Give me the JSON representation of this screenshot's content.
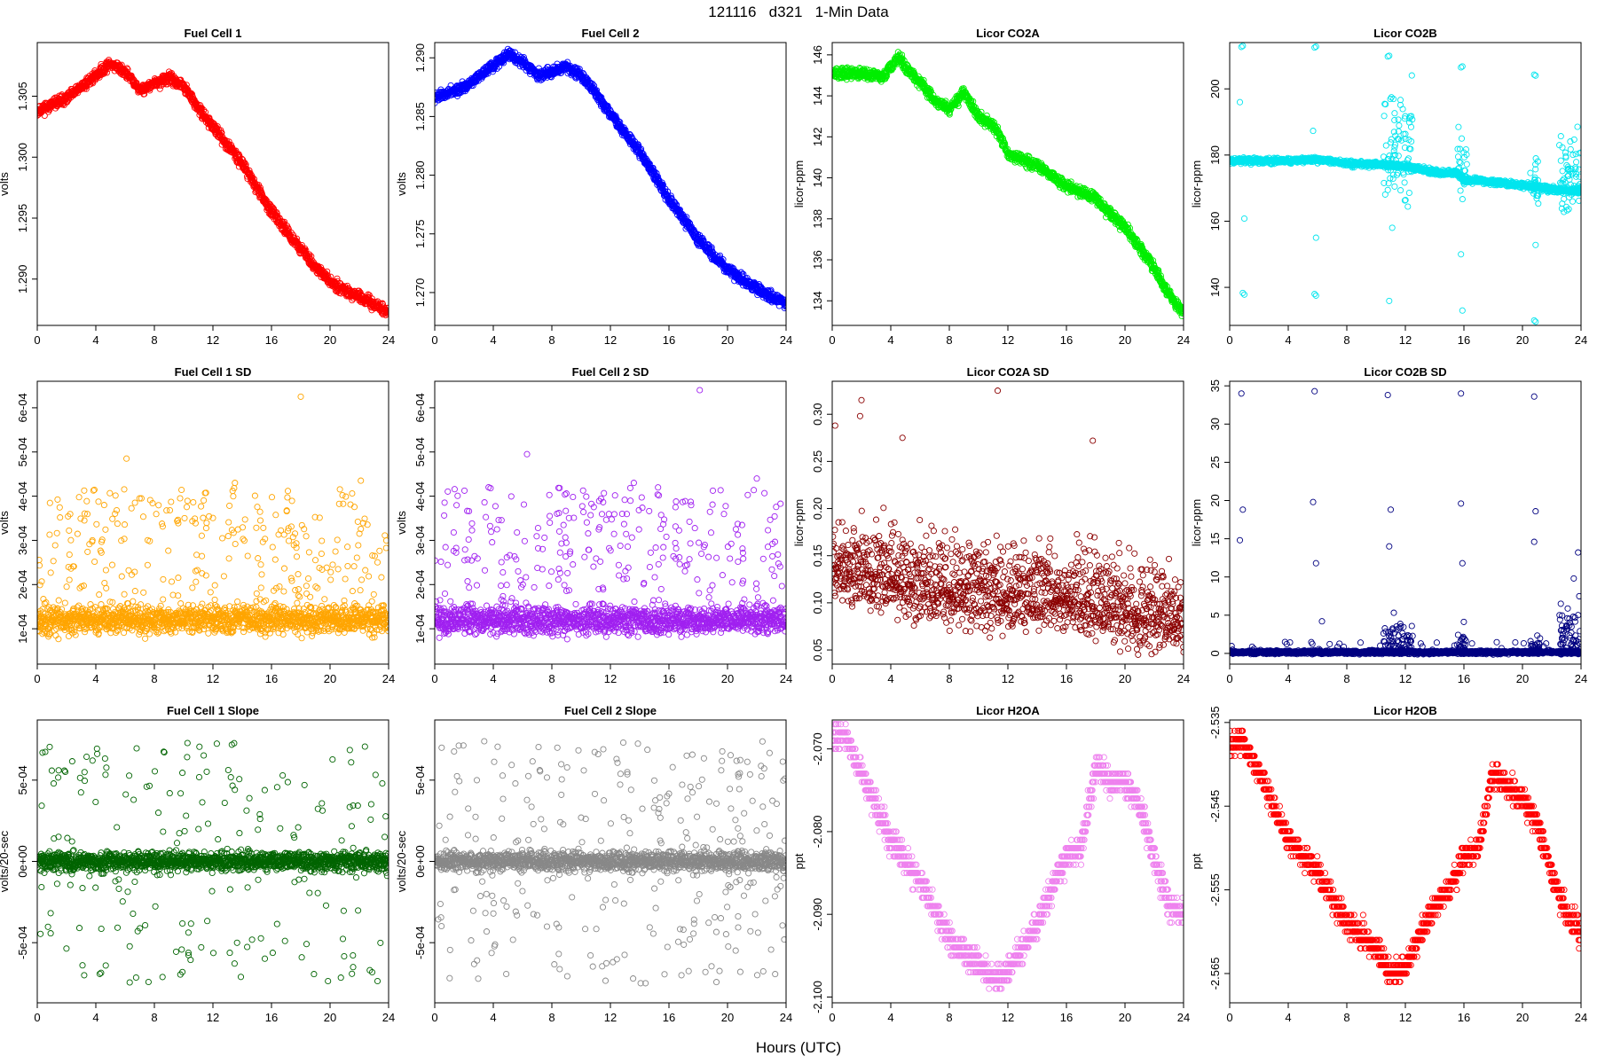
{
  "page": {
    "title": "121116   d321   1-Min Data",
    "xlabel": "Hours (UTC)"
  },
  "chart_data": [
    {
      "title": "Fuel Cell 1",
      "ylabel": "volts",
      "type": "scatter",
      "color": "#ff0000",
      "shape": "trend",
      "xlim": [
        0,
        24
      ],
      "ylim": [
        1.2862,
        1.3094
      ],
      "xticks": [
        0,
        4,
        8,
        12,
        16,
        20,
        24
      ],
      "yticks": [
        1.29,
        1.295,
        1.3,
        1.305
      ],
      "yticklabels": [
        "1.290",
        "1.295",
        "1.300",
        "1.305"
      ],
      "trend": [
        [
          0,
          1.3038
        ],
        [
          2,
          1.3048
        ],
        [
          4,
          1.3067
        ],
        [
          5,
          1.3077
        ],
        [
          6,
          1.307
        ],
        [
          7,
          1.3055
        ],
        [
          8,
          1.306
        ],
        [
          9,
          1.3065
        ],
        [
          10,
          1.3058
        ],
        [
          11,
          1.304
        ],
        [
          12,
          1.3025
        ],
        [
          14,
          1.2995
        ],
        [
          16,
          1.2955
        ],
        [
          18,
          1.2925
        ],
        [
          19,
          1.291
        ],
        [
          20,
          1.2898
        ],
        [
          22,
          1.2885
        ],
        [
          24,
          1.2873
        ]
      ],
      "noise": 0.0003,
      "points_per_hour": 60,
      "seed": 11
    },
    {
      "title": "Fuel Cell 2",
      "ylabel": "volts",
      "type": "scatter",
      "color": "#0000ff",
      "shape": "trend",
      "xlim": [
        0,
        24
      ],
      "ylim": [
        1.2672,
        1.2913
      ],
      "xticks": [
        0,
        4,
        8,
        12,
        16,
        20,
        24
      ],
      "yticks": [
        1.27,
        1.275,
        1.28,
        1.285,
        1.29
      ],
      "yticklabels": [
        "1.270",
        "1.275",
        "1.280",
        "1.285",
        "1.290"
      ],
      "trend": [
        [
          0,
          1.2866
        ],
        [
          2,
          1.2875
        ],
        [
          4,
          1.2893
        ],
        [
          5,
          1.2903
        ],
        [
          6,
          1.2897
        ],
        [
          7,
          1.2885
        ],
        [
          8,
          1.2888
        ],
        [
          9,
          1.2893
        ],
        [
          10,
          1.2885
        ],
        [
          11,
          1.287
        ],
        [
          12,
          1.2852
        ],
        [
          14,
          1.282
        ],
        [
          16,
          1.278
        ],
        [
          18,
          1.2745
        ],
        [
          20,
          1.272
        ],
        [
          22,
          1.2703
        ],
        [
          24,
          1.269
        ]
      ],
      "noise": 0.0003,
      "points_per_hour": 60,
      "seed": 12
    },
    {
      "title": "Licor CO2A",
      "ylabel": "licor-ppm",
      "type": "scatter",
      "color": "#00ee00",
      "shape": "trend",
      "xlim": [
        0,
        24
      ],
      "ylim": [
        132.8,
        146.6
      ],
      "xticks": [
        0,
        4,
        8,
        12,
        16,
        20,
        24
      ],
      "yticks": [
        134,
        136,
        138,
        140,
        142,
        144,
        146
      ],
      "yticklabels": [
        "134",
        "136",
        "138",
        "140",
        "142",
        "144",
        "146"
      ],
      "trend": [
        [
          0,
          145.1
        ],
        [
          2,
          145.1
        ],
        [
          3.5,
          144.9
        ],
        [
          4.5,
          145.9
        ],
        [
          6,
          144.6
        ],
        [
          7,
          143.8
        ],
        [
          8,
          143.3
        ],
        [
          9,
          144.2
        ],
        [
          10,
          143.0
        ],
        [
          11,
          142.5
        ],
        [
          11.5,
          142.0
        ],
        [
          12,
          141.2
        ],
        [
          14,
          140.6
        ],
        [
          16,
          139.6
        ],
        [
          18,
          139.0
        ],
        [
          19,
          138.2
        ],
        [
          20,
          137.6
        ],
        [
          22,
          135.6
        ],
        [
          23,
          134.3
        ],
        [
          24,
          133.4
        ]
      ],
      "noise": 0.18,
      "points_per_hour": 60,
      "seed": 13
    },
    {
      "title": "Licor CO2B",
      "ylabel": "licor-ppm",
      "type": "scatter",
      "color": "#00e5ee",
      "shape": "trend",
      "xlim": [
        0,
        24
      ],
      "ylim": [
        128.5,
        214
      ],
      "xticks": [
        0,
        4,
        8,
        12,
        16,
        20,
        24
      ],
      "yticks": [
        140,
        160,
        180,
        200
      ],
      "yticklabels": [
        "140",
        "160",
        "180",
        "200"
      ],
      "trend": [
        [
          0,
          178.3
        ],
        [
          4,
          178.2
        ],
        [
          6,
          178.6
        ],
        [
          8,
          177.4
        ],
        [
          10,
          177.2
        ],
        [
          12,
          176.5
        ],
        [
          14.5,
          174.5
        ],
        [
          15.5,
          174.8
        ],
        [
          16,
          172.5
        ],
        [
          18,
          171.8
        ],
        [
          20,
          170.8
        ],
        [
          22,
          169.5
        ],
        [
          24,
          169.0
        ]
      ],
      "noise": 0.6,
      "points_per_hour": 60,
      "seed": 14,
      "outliers": [
        [
          0.8,
          212.7
        ],
        [
          0.9,
          213.0
        ],
        [
          0.7,
          196.0
        ],
        [
          1.0,
          160.8
        ],
        [
          0.9,
          138.3
        ],
        [
          1.0,
          137.8
        ],
        [
          5.8,
          212.5
        ],
        [
          5.9,
          212.8
        ],
        [
          5.7,
          187.3
        ],
        [
          5.9,
          155.0
        ],
        [
          5.8,
          138.0
        ],
        [
          5.9,
          137.5
        ],
        [
          10.8,
          209.8
        ],
        [
          10.9,
          210.0
        ],
        [
          11.1,
          158.0
        ],
        [
          10.9,
          135.9
        ],
        [
          15.8,
          206.5
        ],
        [
          15.9,
          206.8
        ],
        [
          15.8,
          150.0
        ],
        [
          15.9,
          133.0
        ],
        [
          20.8,
          204.3
        ],
        [
          20.9,
          204.0
        ],
        [
          20.9,
          152.8
        ],
        [
          20.8,
          130.0
        ],
        [
          20.9,
          129.6
        ]
      ],
      "bursts": [
        [
          10.5,
          12.5,
          16
        ],
        [
          15.5,
          16.2,
          8
        ],
        [
          20.5,
          21.2,
          6
        ],
        [
          22.5,
          24,
          12
        ]
      ]
    },
    {
      "title": "Fuel Cell 1 SD",
      "ylabel": "volts",
      "type": "scatter",
      "color": "#ffa500",
      "shape": "sd",
      "xlim": [
        0,
        24
      ],
      "ylim": [
        2e-05,
        0.00066
      ],
      "xticks": [
        0,
        4,
        8,
        12,
        16,
        20,
        24
      ],
      "yticks": [
        0.0001,
        0.0002,
        0.0003,
        0.0004,
        0.0005,
        0.0006
      ],
      "yticklabels": [
        "1e-04",
        "2e-04",
        "3e-04",
        "4e-04",
        "5e-04",
        "6e-04"
      ],
      "base": 0.00012,
      "noise": 2.2e-05,
      "spread": [
        0.00015,
        0.00042
      ],
      "spread_count": 270,
      "points_per_hour": 60,
      "seed": 21,
      "outliers": [
        [
          18.0,
          0.000625
        ],
        [
          6.1,
          0.000485
        ],
        [
          13.5,
          0.00043
        ],
        [
          22.1,
          0.000435
        ]
      ]
    },
    {
      "title": "Fuel Cell 2 SD",
      "ylabel": "volts",
      "type": "scatter",
      "color": "#a020f0",
      "shape": "sd",
      "xlim": [
        0,
        24
      ],
      "ylim": [
        2e-05,
        0.00066
      ],
      "xticks": [
        0,
        4,
        8,
        12,
        16,
        20,
        24
      ],
      "yticks": [
        0.0001,
        0.0002,
        0.0003,
        0.0004,
        0.0005,
        0.0006
      ],
      "yticklabels": [
        "1e-04",
        "2e-04",
        "3e-04",
        "4e-04",
        "5e-04",
        "6e-04"
      ],
      "base": 0.00012,
      "noise": 2.2e-05,
      "spread": [
        0.00015,
        0.00042
      ],
      "spread_count": 270,
      "points_per_hour": 60,
      "seed": 22,
      "outliers": [
        [
          18.1,
          0.00064
        ],
        [
          6.3,
          0.000495
        ],
        [
          13.6,
          0.00043
        ],
        [
          22.0,
          0.00044
        ]
      ]
    },
    {
      "title": "Licor CO2A SD",
      "ylabel": "licor-ppm",
      "type": "scatter",
      "color": "#8b0000",
      "shape": "sdwide",
      "xlim": [
        0,
        24
      ],
      "ylim": [
        0.035,
        0.335
      ],
      "xticks": [
        0,
        4,
        8,
        12,
        16,
        20,
        24
      ],
      "yticks": [
        0.05,
        0.1,
        0.15,
        0.2,
        0.25,
        0.3
      ],
      "yticklabels": [
        "0.05",
        "0.10",
        "0.15",
        "0.20",
        "0.25",
        "0.30"
      ],
      "trend": [
        [
          0,
          0.14
        ],
        [
          4,
          0.125
        ],
        [
          8,
          0.11
        ],
        [
          12,
          0.105
        ],
        [
          16,
          0.105
        ],
        [
          20,
          0.09
        ],
        [
          24,
          0.075
        ]
      ],
      "noise": 0.04,
      "points_per_hour": 60,
      "seed": 23,
      "outliers": [
        [
          11.3,
          0.325
        ],
        [
          2.0,
          0.315
        ],
        [
          1.9,
          0.298
        ],
        [
          17.8,
          0.272
        ],
        [
          0.2,
          0.288
        ],
        [
          4.8,
          0.275
        ]
      ]
    },
    {
      "title": "Licor CO2B SD",
      "ylabel": "licor-ppm",
      "type": "scatter",
      "color": "#000080",
      "shape": "sd",
      "xlim": [
        0,
        24
      ],
      "ylim": [
        -1.4,
        35.6
      ],
      "xticks": [
        0,
        4,
        8,
        12,
        16,
        20,
        24
      ],
      "yticks": [
        0,
        5,
        10,
        15,
        20,
        25,
        30,
        35
      ],
      "yticklabels": [
        "0",
        "5",
        "10",
        "15",
        "20",
        "25",
        "30",
        "35"
      ],
      "base": 0.15,
      "noise": 0.15,
      "spread": [
        0.3,
        1.5
      ],
      "spread_count": 40,
      "points_per_hour": 60,
      "seed": 24,
      "bursts": [
        [
          10.5,
          12.5,
          5.0
        ],
        [
          15.5,
          16.2,
          4.0
        ],
        [
          20.5,
          21.2,
          2.5
        ],
        [
          22.5,
          24,
          9.0
        ]
      ],
      "outliers": [
        [
          0.8,
          34.0
        ],
        [
          0.9,
          18.8
        ],
        [
          0.7,
          14.8
        ],
        [
          5.8,
          34.3
        ],
        [
          5.7,
          19.8
        ],
        [
          5.9,
          11.8
        ],
        [
          6.3,
          4.2
        ],
        [
          10.8,
          33.8
        ],
        [
          11.0,
          18.8
        ],
        [
          10.9,
          14.0
        ],
        [
          15.8,
          34.0
        ],
        [
          15.8,
          19.6
        ],
        [
          15.9,
          11.8
        ],
        [
          20.8,
          33.6
        ],
        [
          20.9,
          18.6
        ],
        [
          20.8,
          14.6
        ],
        [
          23.8,
          13.2
        ],
        [
          23.5,
          9.8
        ]
      ]
    },
    {
      "title": "Fuel Cell 1 Slope",
      "ylabel": "volts/20-sec",
      "type": "scatter",
      "color": "#006400",
      "shape": "slope",
      "xlim": [
        0,
        24
      ],
      "ylim": [
        -0.00087,
        0.00087
      ],
      "xticks": [
        0,
        4,
        8,
        12,
        16,
        20,
        24
      ],
      "yticks": [
        -0.0005,
        0,
        0.0005
      ],
      "yticklabels": [
        "-5e-04",
        "0e+00",
        "5e-04"
      ],
      "noise": 4e-05,
      "spread": 0.00075,
      "spread_count": 210,
      "points_per_hour": 60,
      "seed": 31
    },
    {
      "title": "Fuel Cell 2 Slope",
      "ylabel": "volts/20-sec",
      "type": "scatter",
      "color": "#888888",
      "shape": "slope",
      "xlim": [
        0,
        24
      ],
      "ylim": [
        -0.00087,
        0.00087
      ],
      "xticks": [
        0,
        4,
        8,
        12,
        16,
        20,
        24
      ],
      "yticks": [
        -0.0005,
        0,
        0.0005
      ],
      "yticklabels": [
        "-5e-04",
        "0e+00",
        "5e-04"
      ],
      "noise": 4e-05,
      "spread": 0.00075,
      "spread_count": 300,
      "points_per_hour": 60,
      "seed": 32
    },
    {
      "title": "Licor H2OA",
      "ylabel": "ppt",
      "type": "scatter",
      "color": "#ee82ee",
      "shape": "stepped",
      "xlim": [
        0,
        24
      ],
      "ylim": [
        -2.1007,
        -2.0665
      ],
      "xticks": [
        0,
        4,
        8,
        12,
        16,
        20,
        24
      ],
      "yticks": [
        -2.1,
        -2.09,
        -2.08,
        -2.07
      ],
      "yticklabels": [
        "-2.100",
        "-2.090",
        "-2.080",
        "-2.070"
      ],
      "trend": [
        [
          0,
          -2.069
        ],
        [
          0.8,
          -2.068
        ],
        [
          2,
          -2.073
        ],
        [
          4,
          -2.081
        ],
        [
          6,
          -2.086
        ],
        [
          8,
          -2.093
        ],
        [
          10,
          -2.096
        ],
        [
          11,
          -2.098
        ],
        [
          12,
          -2.097
        ],
        [
          14,
          -2.091
        ],
        [
          15,
          -2.087
        ],
        [
          16,
          -2.083
        ],
        [
          17,
          -2.082
        ],
        [
          18,
          -2.072
        ],
        [
          19,
          -2.074
        ],
        [
          20,
          -2.074
        ],
        [
          21,
          -2.077
        ],
        [
          22,
          -2.083
        ],
        [
          23,
          -2.089
        ],
        [
          24,
          -2.09
        ]
      ],
      "step": 0.001,
      "noise": 0.0022,
      "points_per_hour": 60,
      "seed": 41
    },
    {
      "title": "Licor H2OB",
      "ylabel": "ppt",
      "type": "scatter",
      "color": "#ff0000",
      "shape": "stepped",
      "xlim": [
        0,
        24
      ],
      "ylim": [
        -2.5685,
        -2.5347
      ],
      "xticks": [
        0,
        4,
        8,
        12,
        16,
        20,
        24
      ],
      "yticks": [
        -2.565,
        -2.555,
        -2.545,
        -2.535
      ],
      "yticklabels": [
        "-2.565",
        "-2.555",
        "-2.545",
        "-2.535"
      ],
      "trend": [
        [
          0,
          -2.538
        ],
        [
          0.8,
          -2.537
        ],
        [
          2,
          -2.541
        ],
        [
          4,
          -2.549
        ],
        [
          6,
          -2.553
        ],
        [
          8,
          -2.559
        ],
        [
          10,
          -2.562
        ],
        [
          11,
          -2.565
        ],
        [
          12,
          -2.564
        ],
        [
          14,
          -2.557
        ],
        [
          15,
          -2.555
        ],
        [
          16,
          -2.551
        ],
        [
          17,
          -2.55
        ],
        [
          18,
          -2.541
        ],
        [
          19,
          -2.543
        ],
        [
          20,
          -2.544
        ],
        [
          21,
          -2.547
        ],
        [
          22,
          -2.553
        ],
        [
          23,
          -2.558
        ],
        [
          24,
          -2.56
        ]
      ],
      "step": 0.001,
      "noise": 0.002,
      "points_per_hour": 60,
      "seed": 42
    }
  ]
}
